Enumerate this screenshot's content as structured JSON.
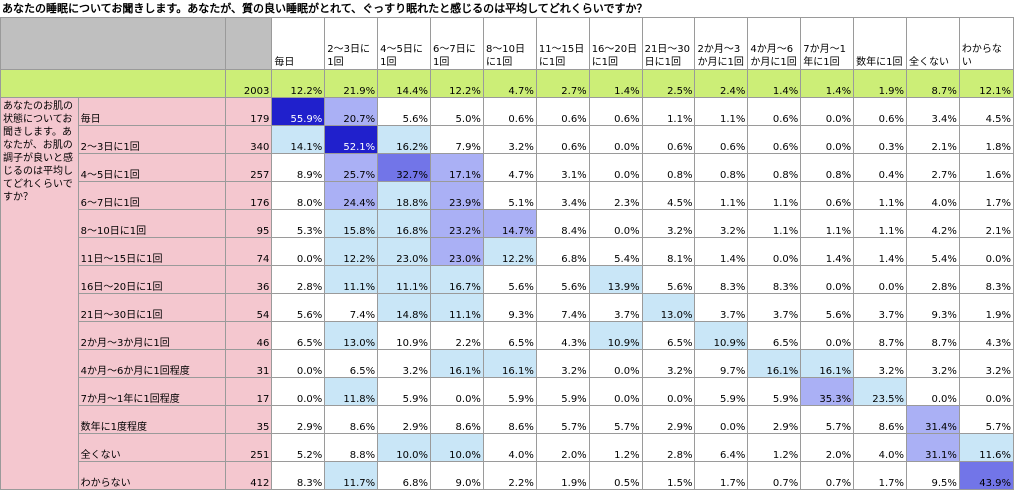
{
  "title": "あなたの睡眠についてお聞きします。あなたが、質の良い睡眠がとれて、ぐっすり眠れたと感じるのは平均してどれくらいですか？",
  "row_group_label": "あなたのお肌の状態についてお聞きします。あなたが、お肌の調子が良いと感じるのは平均してどれくらいですか？",
  "columns": [
    "毎日",
    "2～3日に1回",
    "4～5日に1回",
    "6～7日に1回",
    "8～10日に1回",
    "11～15日に1回",
    "16～20日に1回",
    "21日～30日に1回",
    "2か月～3か月に1回",
    "4か月～6か月に1回",
    "7か月～1年に1回",
    "数年に1回",
    "全くない",
    "わからない"
  ],
  "total": {
    "n": "2003",
    "values": [
      "12.2%",
      "21.9%",
      "14.4%",
      "12.2%",
      "4.7%",
      "2.7%",
      "1.4%",
      "2.5%",
      "2.4%",
      "1.4%",
      "1.4%",
      "1.9%",
      "8.7%",
      "12.1%"
    ]
  },
  "rows": [
    {
      "label": "毎日",
      "n": "179",
      "values": [
        "55.9%",
        "20.7%",
        "5.6%",
        "5.0%",
        "0.6%",
        "0.6%",
        "0.6%",
        "1.1%",
        "1.1%",
        "0.6%",
        "0.0%",
        "0.6%",
        "3.4%",
        "4.5%"
      ],
      "shade": [
        4,
        2,
        0,
        0,
        0,
        0,
        0,
        0,
        0,
        0,
        0,
        0,
        0,
        0
      ]
    },
    {
      "label": "2～3日に1回",
      "n": "340",
      "values": [
        "14.1%",
        "52.1%",
        "16.2%",
        "7.9%",
        "3.2%",
        "0.6%",
        "0.0%",
        "0.6%",
        "0.6%",
        "0.6%",
        "0.0%",
        "0.3%",
        "2.1%",
        "1.8%"
      ],
      "shade": [
        1,
        4,
        1,
        0,
        0,
        0,
        0,
        0,
        0,
        0,
        0,
        0,
        0,
        0
      ]
    },
    {
      "label": "4～5日に1回",
      "n": "257",
      "values": [
        "8.9%",
        "25.7%",
        "32.7%",
        "17.1%",
        "4.7%",
        "3.1%",
        "0.0%",
        "0.8%",
        "0.8%",
        "0.8%",
        "0.8%",
        "0.4%",
        "2.7%",
        "1.6%"
      ],
      "shade": [
        0,
        2,
        3,
        2,
        0,
        0,
        0,
        0,
        0,
        0,
        0,
        0,
        0,
        0
      ]
    },
    {
      "label": "6～7日に1回",
      "n": "176",
      "values": [
        "8.0%",
        "24.4%",
        "18.8%",
        "23.9%",
        "5.1%",
        "3.4%",
        "2.3%",
        "4.5%",
        "1.1%",
        "1.1%",
        "0.6%",
        "1.1%",
        "4.0%",
        "1.7%"
      ],
      "shade": [
        0,
        2,
        1,
        2,
        0,
        0,
        0,
        0,
        0,
        0,
        0,
        0,
        0,
        0
      ]
    },
    {
      "label": "8～10日に1回",
      "n": "95",
      "values": [
        "5.3%",
        "15.8%",
        "16.8%",
        "23.2%",
        "14.7%",
        "8.4%",
        "0.0%",
        "3.2%",
        "3.2%",
        "1.1%",
        "1.1%",
        "1.1%",
        "4.2%",
        "2.1%"
      ],
      "shade": [
        0,
        1,
        1,
        2,
        2,
        0,
        0,
        0,
        0,
        0,
        0,
        0,
        0,
        0
      ]
    },
    {
      "label": "11日～15日に1回",
      "n": "74",
      "values": [
        "0.0%",
        "12.2%",
        "23.0%",
        "23.0%",
        "12.2%",
        "6.8%",
        "5.4%",
        "8.1%",
        "1.4%",
        "0.0%",
        "1.4%",
        "1.4%",
        "5.4%",
        "0.0%"
      ],
      "shade": [
        0,
        1,
        1,
        2,
        1,
        0,
        0,
        0,
        0,
        0,
        0,
        0,
        0,
        0
      ]
    },
    {
      "label": "16日～20日に1回",
      "n": "36",
      "values": [
        "2.8%",
        "11.1%",
        "11.1%",
        "16.7%",
        "5.6%",
        "5.6%",
        "13.9%",
        "5.6%",
        "8.3%",
        "8.3%",
        "0.0%",
        "0.0%",
        "2.8%",
        "8.3%"
      ],
      "shade": [
        0,
        1,
        1,
        1,
        0,
        0,
        1,
        0,
        0,
        0,
        0,
        0,
        0,
        0
      ]
    },
    {
      "label": "21日～30日に1回",
      "n": "54",
      "values": [
        "5.6%",
        "7.4%",
        "14.8%",
        "11.1%",
        "9.3%",
        "7.4%",
        "3.7%",
        "13.0%",
        "3.7%",
        "3.7%",
        "5.6%",
        "3.7%",
        "9.3%",
        "1.9%"
      ],
      "shade": [
        0,
        0,
        1,
        1,
        0,
        0,
        0,
        1,
        0,
        0,
        0,
        0,
        0,
        0
      ]
    },
    {
      "label": "2か月～3か月に1回",
      "n": "46",
      "values": [
        "6.5%",
        "13.0%",
        "10.9%",
        "2.2%",
        "6.5%",
        "4.3%",
        "10.9%",
        "6.5%",
        "10.9%",
        "6.5%",
        "0.0%",
        "8.7%",
        "8.7%",
        "4.3%"
      ],
      "shade": [
        0,
        1,
        0,
        0,
        0,
        0,
        1,
        0,
        1,
        0,
        0,
        0,
        0,
        0
      ]
    },
    {
      "label": "4か月～6か月に1回程度",
      "n": "31",
      "values": [
        "0.0%",
        "6.5%",
        "3.2%",
        "16.1%",
        "16.1%",
        "3.2%",
        "0.0%",
        "3.2%",
        "9.7%",
        "16.1%",
        "16.1%",
        "3.2%",
        "3.2%",
        "3.2%"
      ],
      "shade": [
        0,
        0,
        0,
        1,
        1,
        0,
        0,
        0,
        0,
        1,
        1,
        0,
        0,
        0
      ]
    },
    {
      "label": "7か月～1年に1回程度",
      "n": "17",
      "values": [
        "0.0%",
        "11.8%",
        "5.9%",
        "0.0%",
        "5.9%",
        "5.9%",
        "0.0%",
        "0.0%",
        "5.9%",
        "5.9%",
        "35.3%",
        "23.5%",
        "0.0%",
        "0.0%"
      ],
      "shade": [
        0,
        1,
        0,
        0,
        0,
        0,
        0,
        0,
        0,
        0,
        2,
        1,
        0,
        0
      ]
    },
    {
      "label": "数年に1度程度",
      "n": "35",
      "values": [
        "2.9%",
        "8.6%",
        "2.9%",
        "8.6%",
        "8.6%",
        "5.7%",
        "5.7%",
        "2.9%",
        "0.0%",
        "2.9%",
        "5.7%",
        "8.6%",
        "31.4%",
        "5.7%"
      ],
      "shade": [
        0,
        0,
        0,
        0,
        0,
        0,
        0,
        0,
        0,
        0,
        0,
        0,
        2,
        0
      ]
    },
    {
      "label": "全くない",
      "n": "251",
      "values": [
        "5.2%",
        "8.8%",
        "10.0%",
        "10.0%",
        "4.0%",
        "2.0%",
        "1.2%",
        "2.8%",
        "6.4%",
        "1.2%",
        "2.0%",
        "4.0%",
        "31.1%",
        "11.6%"
      ],
      "shade": [
        0,
        0,
        1,
        1,
        0,
        0,
        0,
        0,
        0,
        0,
        0,
        0,
        2,
        1
      ]
    },
    {
      "label": "わからない",
      "n": "412",
      "values": [
        "8.3%",
        "11.7%",
        "6.8%",
        "9.0%",
        "2.2%",
        "1.9%",
        "0.5%",
        "1.5%",
        "1.7%",
        "0.7%",
        "0.7%",
        "1.7%",
        "9.5%",
        "43.9%"
      ],
      "shade": [
        0,
        1,
        0,
        0,
        0,
        0,
        0,
        0,
        0,
        0,
        0,
        0,
        0,
        3
      ]
    }
  ]
}
